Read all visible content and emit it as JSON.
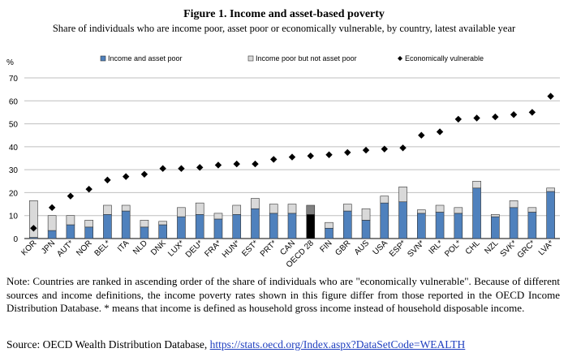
{
  "title": "Figure 1. Income and asset-based poverty",
  "subtitle": "Share of individuals who are income poor, asset poor or economically vulnerable, by country, latest available year",
  "note": "Note: Countries are ranked in ascending order of the share of individuals who are \"economically vulnerable\". Because of different sources and income definitions, the income poverty rates shown in this figure differ from those reported in the OECD Income Distribution Database. * means that income is defined as household gross income instead of household disposable income.",
  "source_prefix": "Source: OECD Wealth Distribution Database, ",
  "source_link": "https://stats.oecd.org/Index.aspx?DataSetCode=WEALTH",
  "colors": {
    "income_and_asset_poor": "#4f81bd",
    "income_poor_not_asset_poor": "#d9d9d9",
    "oecd_highlight": "#000000",
    "vulnerable_marker": "#000000",
    "grid": "#bfbfbf"
  },
  "chart_data": {
    "type": "bar",
    "stacked": true,
    "yunit": "%",
    "ylim": [
      0,
      70
    ],
    "yticks": [
      0,
      10,
      20,
      30,
      40,
      50,
      60,
      70
    ],
    "grid": true,
    "legend_position": "top",
    "highlight_category": "OECD 28",
    "categories": [
      "KOR",
      "JPN",
      "AUT*",
      "NOR",
      "BEL*",
      "ITA",
      "NLD",
      "DNK",
      "LUX*",
      "DEU*",
      "FRA*",
      "HUN*",
      "EST*",
      "PRT*",
      "CAN",
      "OECD 28",
      "FIN",
      "GBR",
      "AUS",
      "USA",
      "ESP*",
      "SVN*",
      "IRL*",
      "POL*",
      "CHL",
      "NZL",
      "SVK*",
      "GRC*",
      "LVA*"
    ],
    "series": [
      {
        "name": "Income and asset poor",
        "kind": "bar",
        "values": [
          0.5,
          3.5,
          6,
          5,
          10.5,
          12,
          5,
          6,
          9.5,
          10.5,
          8.5,
          10.5,
          13,
          11,
          11,
          10.5,
          4.5,
          12,
          8,
          15.5,
          16,
          11,
          11.5,
          11,
          22,
          9.5,
          13.5,
          11.5,
          20.5
        ]
      },
      {
        "name": "Income poor but not asset poor",
        "kind": "bar",
        "values": [
          16,
          6.5,
          4,
          3,
          4,
          2.5,
          3,
          1.5,
          4,
          5,
          2.5,
          4,
          4.5,
          4,
          4,
          4,
          2.5,
          3,
          5,
          3,
          6.5,
          1.5,
          3,
          2.5,
          3,
          1,
          3,
          2,
          1.5
        ]
      },
      {
        "name": "Economically vulnerable",
        "kind": "marker",
        "values": [
          4.5,
          13.5,
          18.5,
          21.5,
          25.5,
          27,
          28,
          30.5,
          30.5,
          31,
          32,
          32.5,
          32.5,
          34.5,
          35.5,
          36,
          36.5,
          37.5,
          38.5,
          39,
          39.5,
          45,
          46.5,
          52,
          52.5,
          53,
          54,
          55,
          62
        ]
      }
    ]
  }
}
